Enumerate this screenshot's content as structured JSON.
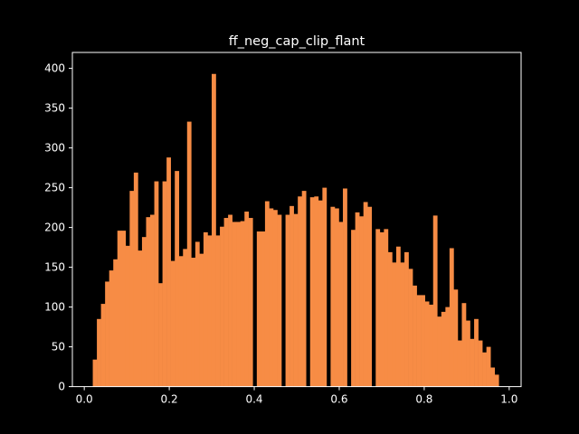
{
  "chart_data": {
    "type": "bar",
    "title": "ff_neg_cap_clip_flant",
    "xlabel": "",
    "ylabel": "",
    "xlim": [
      -0.028,
      1.028
    ],
    "ylim": [
      0,
      420
    ],
    "xticks": [
      0.0,
      0.2,
      0.4,
      0.6,
      0.8,
      1.0
    ],
    "xtick_labels": [
      "0.0",
      "0.2",
      "0.4",
      "0.6",
      "0.8",
      "1.0"
    ],
    "yticks": [
      0,
      50,
      100,
      150,
      200,
      250,
      300,
      350,
      400
    ],
    "ytick_labels": [
      "0",
      "50",
      "100",
      "150",
      "200",
      "250",
      "300",
      "350",
      "400"
    ],
    "grid": false,
    "bin_edges_range": [
      0.02,
      0.985
    ],
    "bin_count": 100,
    "values": [
      34,
      85,
      104,
      132,
      146,
      160,
      196,
      196,
      177,
      246,
      269,
      171,
      188,
      213,
      216,
      258,
      130,
      258,
      288,
      158,
      271,
      164,
      173,
      333,
      162,
      182,
      167,
      194,
      190,
      393,
      190,
      201,
      212,
      216,
      207,
      207,
      208,
      220,
      212,
      0,
      195,
      195,
      233,
      224,
      222,
      216,
      0,
      216,
      227,
      217,
      239,
      246,
      0,
      238,
      239,
      234,
      250,
      0,
      226,
      224,
      207,
      249,
      0,
      197,
      219,
      214,
      232,
      226,
      0,
      198,
      194,
      198,
      169,
      156,
      176,
      156,
      169,
      148,
      127,
      115,
      115,
      107,
      103,
      215,
      88,
      94,
      100,
      174,
      122,
      58,
      105,
      83,
      60,
      85,
      58,
      43,
      50,
      24,
      15,
      0
    ],
    "bar_color": "#f78c45",
    "background_color": "#000000",
    "text_color": "#ffffff"
  }
}
